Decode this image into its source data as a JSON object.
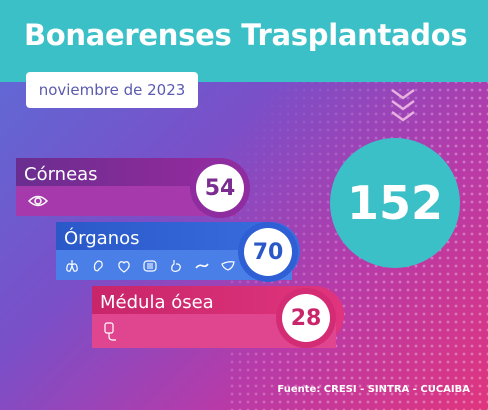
{
  "header": {
    "title": "Bonaerenses Trasplantados",
    "date": "noviembre de 2023"
  },
  "total": "152",
  "categories": [
    {
      "label": "Córneas",
      "value": "54",
      "icons": [
        "eye-icon"
      ]
    },
    {
      "label": "Órganos",
      "value": "70",
      "icons": [
        "lungs-icon",
        "ear-icon",
        "heart-icon",
        "intestine-icon",
        "stomach-icon",
        "pancreas-icon",
        "liver-icon"
      ]
    },
    {
      "label": "Médula ósea",
      "value": "28",
      "icons": [
        "iv-bag-icon"
      ]
    }
  ],
  "footer": {
    "source": "Fuente: CRESI - SINTRA - CUCAIBA"
  },
  "colors": {
    "teal": "#3cc0c8",
    "purple": "#8e2ca0",
    "blue": "#2f5fd4",
    "pink": "#d42c74"
  }
}
